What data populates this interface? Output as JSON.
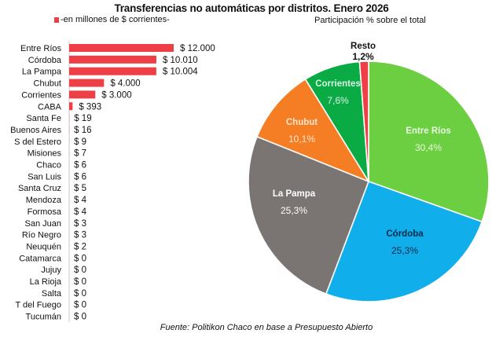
{
  "title": "Transferencias no automáticas por distritos. Enero 2026",
  "source": "Fuente: Politikon Chaco en base a Presupuesto Abierto",
  "chart_data": [
    {
      "type": "bar",
      "orientation": "horizontal",
      "legend": "-en millones de $ corrientes-",
      "legend_position": "top-left",
      "color": "#ee3f46",
      "categories": [
        "Entre Ríos",
        "Córdoba",
        "La Pampa",
        "Chubut",
        "Corrientes",
        "CABA",
        "Santa Fe",
        "Buenos Aires",
        "S del Estero",
        "Misiones",
        "Chaco",
        "San Luis",
        "Santa Cruz",
        "Mendoza",
        "Formosa",
        "San Juan",
        "Río Negro",
        "Neuquén",
        "Catamarca",
        "Jujuy",
        "La Rioja",
        "Salta",
        "T del Fuego",
        "Tucumán"
      ],
      "values": [
        12000,
        10010,
        10004,
        4000,
        3000,
        393,
        19,
        16,
        9,
        7,
        6,
        6,
        5,
        4,
        4,
        3,
        3,
        2,
        0,
        0,
        0,
        0,
        0,
        0
      ],
      "value_labels": [
        "$ 12.000",
        "$ 10.010",
        "$ 10.004",
        "$ 4.000",
        "$ 3.000",
        "$ 393",
        "$ 19",
        "$ 16",
        "$ 9",
        "$ 7",
        "$ 6",
        "$ 6",
        "$ 5",
        "$ 4",
        "$ 4",
        "$ 3",
        "$ 3",
        "$ 2",
        "$ 0",
        "$ 0",
        "$ 0",
        "$ 0",
        "$ 0",
        "$ 0"
      ],
      "xlim": [
        0,
        12000
      ],
      "grid": false
    },
    {
      "type": "pie",
      "title": "Participación % sobre el total",
      "slices": [
        {
          "label": "Entre Ríos",
          "value": 30.4,
          "pct_label": "30,4%",
          "color": "#6ccf42",
          "text_color": "#e8f7df"
        },
        {
          "label": "Córdoba",
          "value": 25.3,
          "pct_label": "25,3%",
          "color": "#10aeea",
          "text_color": "#0b2a4a"
        },
        {
          "label": "La Pampa",
          "value": 25.3,
          "pct_label": "25,3%",
          "color": "#7a7473",
          "text_color": "#ffffff"
        },
        {
          "label": "Chubut",
          "value": 10.1,
          "pct_label": "10,1%",
          "color": "#f57e24",
          "text_color": "#ffe6cf"
        },
        {
          "label": "Corrientes",
          "value": 7.6,
          "pct_label": "7,6%",
          "color": "#0aab45",
          "text_color": "#d9f5e3"
        },
        {
          "label": "Resto",
          "value": 1.2,
          "pct_label": "1,2%",
          "color": "#ee3f46",
          "text_color": "#111111"
        }
      ]
    }
  ]
}
